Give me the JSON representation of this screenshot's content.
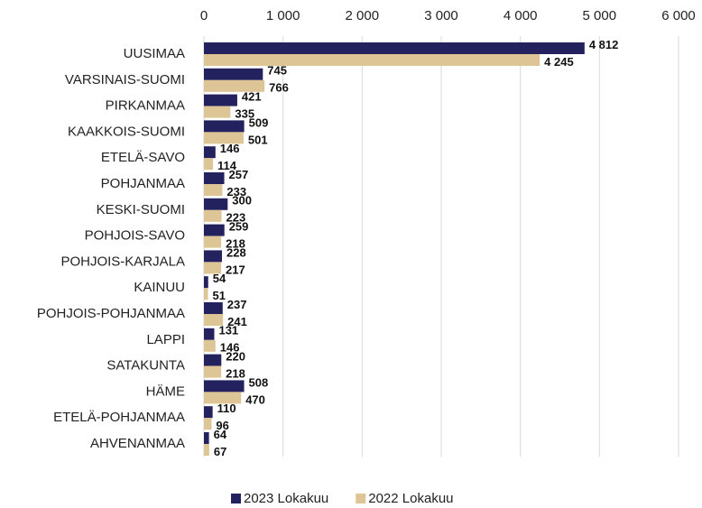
{
  "chart_data": {
    "type": "bar",
    "orientation": "horizontal",
    "categories": [
      "UUSIMAA",
      "VARSINAIS-SUOMI",
      "PIRKANMAA",
      "KAAKKOIS-SUOMI",
      "ETELÄ-SAVO",
      "POHJANMAA",
      "KESKI-SUOMI",
      "POHJOIS-SAVO",
      "POHJOIS-KARJALA",
      "KAINUU",
      "POHJOIS-POHJANMAA",
      "LAPPI",
      "SATAKUNTA",
      "HÄME",
      "ETELÄ-POHJANMAA",
      "AHVENANMAA"
    ],
    "series": [
      {
        "name": "2023 Lokakuu",
        "color": "#24215f",
        "values": [
          4812,
          745,
          421,
          509,
          146,
          257,
          300,
          259,
          228,
          54,
          237,
          131,
          220,
          508,
          110,
          64
        ],
        "value_labels": [
          "4 812",
          "745",
          "421",
          "509",
          "146",
          "257",
          "300",
          "259",
          "228",
          "54",
          "237",
          "131",
          "220",
          "508",
          "110",
          "64"
        ]
      },
      {
        "name": "2022 Lokakuu",
        "color": "#dec596",
        "values": [
          4245,
          766,
          335,
          501,
          114,
          233,
          223,
          218,
          217,
          51,
          241,
          146,
          218,
          470,
          96,
          67
        ],
        "value_labels": [
          "4 245",
          "766",
          "335",
          "501",
          "114",
          "233",
          "223",
          "218",
          "217",
          "51",
          "241",
          "146",
          "218",
          "470",
          "96",
          "67"
        ]
      }
    ],
    "xlim": [
      0,
      6000
    ],
    "xticks": [
      0,
      {
        "value": 1000,
        "label": "1 000"
      },
      {
        "value": 2000,
        "label": "2 000"
      },
      {
        "value": 3000,
        "label": "3 000"
      },
      {
        "value": 4000,
        "label": "4 000"
      },
      {
        "value": 5000,
        "label": "5 000"
      },
      {
        "value": 6000,
        "label": "6 000"
      }
    ],
    "grid": true,
    "legend": "bottom"
  }
}
